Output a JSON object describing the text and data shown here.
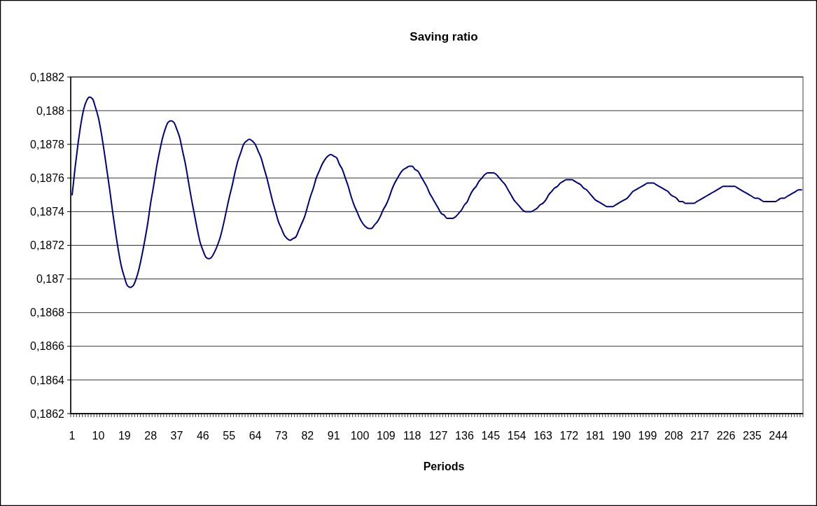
{
  "chart_data": {
    "type": "line",
    "title": "Saving ratio",
    "xlabel": "Periods",
    "categories": [
      "1",
      null,
      null,
      null,
      null,
      null,
      null,
      null,
      null,
      "10",
      null,
      null,
      null,
      null,
      null,
      null,
      null,
      null,
      "19",
      null,
      null,
      null,
      null,
      null,
      null,
      null,
      null,
      "28",
      null,
      null,
      null,
      null,
      null,
      null,
      null,
      null,
      "37",
      null,
      null,
      null,
      null,
      null,
      null,
      null,
      null,
      "46",
      null,
      null,
      null,
      null,
      null,
      null,
      null,
      null,
      "55",
      null,
      null,
      null,
      null,
      null,
      null,
      null,
      null,
      "64",
      null,
      null,
      null,
      null,
      null,
      null,
      null,
      null,
      "73",
      null,
      null,
      null,
      null,
      null,
      null,
      null,
      null,
      "82",
      null,
      null,
      null,
      null,
      null,
      null,
      null,
      null,
      "91",
      null,
      null,
      null,
      null,
      null,
      null,
      null,
      null,
      "100",
      null,
      null,
      null,
      null,
      null,
      null,
      null,
      null,
      "109",
      null,
      null,
      null,
      null,
      null,
      null,
      null,
      null,
      "118",
      null,
      null,
      null,
      null,
      null,
      null,
      null,
      null,
      "127",
      null,
      null,
      null,
      null,
      null,
      null,
      null,
      null,
      "136",
      null,
      null,
      null,
      null,
      null,
      null,
      null,
      null,
      "145",
      null,
      null,
      null,
      null,
      null,
      null,
      null,
      null,
      "154",
      null,
      null,
      null,
      null,
      null,
      null,
      null,
      null,
      "163",
      null,
      null,
      null,
      null,
      null,
      null,
      null,
      null,
      "172",
      null,
      null,
      null,
      null,
      null,
      null,
      null,
      null,
      "181",
      null,
      null,
      null,
      null,
      null,
      null,
      null,
      null,
      "190",
      null,
      null,
      null,
      null,
      null,
      null,
      null,
      null,
      "199",
      null,
      null,
      null,
      null,
      null,
      null,
      null,
      null,
      "208",
      null,
      null,
      null,
      null,
      null,
      null,
      null,
      null,
      "217",
      null,
      null,
      null,
      null,
      null,
      null,
      null,
      null,
      "226",
      null,
      null,
      null,
      null,
      null,
      null,
      null,
      null,
      "235",
      null,
      null,
      null,
      null,
      null,
      null,
      null,
      null,
      "244",
      null,
      null,
      null,
      null,
      null,
      null,
      null,
      null
    ],
    "series": [
      {
        "color": "#000080",
        "values": [
          0.1875,
          0.18766,
          0.1878,
          0.18792,
          0.18801,
          0.18806,
          0.18808,
          0.18807,
          0.18802,
          0.18796,
          0.18787,
          0.18776,
          0.18764,
          0.18752,
          0.18739,
          0.18727,
          0.18716,
          0.18707,
          0.18701,
          0.18696,
          0.18695,
          0.18696,
          0.187,
          0.18706,
          0.18714,
          0.18723,
          0.18733,
          0.18745,
          0.18755,
          0.18766,
          0.18775,
          0.18783,
          0.18789,
          0.18793,
          0.18794,
          0.18793,
          0.18789,
          0.18784,
          0.18776,
          0.18768,
          0.18758,
          0.18748,
          0.18739,
          0.1873,
          0.18722,
          0.18717,
          0.18713,
          0.18712,
          0.18713,
          0.18716,
          0.1872,
          0.18725,
          0.18732,
          0.1874,
          0.18748,
          0.18755,
          0.18763,
          0.1877,
          0.18775,
          0.1878,
          0.18782,
          0.18783,
          0.18782,
          0.1878,
          0.18776,
          0.18772,
          0.18766,
          0.1876,
          0.18753,
          0.18746,
          0.1874,
          0.18734,
          0.1873,
          0.18726,
          0.18724,
          0.18723,
          0.18724,
          0.18725,
          0.18729,
          0.18733,
          0.18737,
          0.18743,
          0.18749,
          0.18754,
          0.1876,
          0.18764,
          0.18768,
          0.18771,
          0.18773,
          0.18774,
          0.18773,
          0.18772,
          0.18768,
          0.18765,
          0.1876,
          0.18755,
          0.18749,
          0.18744,
          0.1874,
          0.18736,
          0.18733,
          0.18731,
          0.1873,
          0.1873,
          0.18732,
          0.18734,
          0.18737,
          0.18741,
          0.18744,
          0.18748,
          0.18753,
          0.18757,
          0.1876,
          0.18763,
          0.18765,
          0.18766,
          0.18767,
          0.18767,
          0.18765,
          0.18764,
          0.18761,
          0.18758,
          0.18755,
          0.18751,
          0.18748,
          0.18745,
          0.18742,
          0.18739,
          0.18738,
          0.18736,
          0.18736,
          0.18736,
          0.18737,
          0.18739,
          0.18741,
          0.18744,
          0.18746,
          0.1875,
          0.18753,
          0.18755,
          0.18758,
          0.1876,
          0.18762,
          0.18763,
          0.18763,
          0.18763,
          0.18762,
          0.1876,
          0.18758,
          0.18756,
          0.18753,
          0.1875,
          0.18747,
          0.18745,
          0.18743,
          0.18741,
          0.1874,
          0.1874,
          0.1874,
          0.18741,
          0.18742,
          0.18744,
          0.18745,
          0.18747,
          0.1875,
          0.18752,
          0.18754,
          0.18755,
          0.18757,
          0.18758,
          0.18759,
          0.18759,
          0.18759,
          0.18758,
          0.18757,
          0.18756,
          0.18754,
          0.18753,
          0.18751,
          0.18749,
          0.18747,
          0.18746,
          0.18745,
          0.18744,
          0.18743,
          0.18743,
          0.18743,
          0.18744,
          0.18745,
          0.18746,
          0.18747,
          0.18748,
          0.1875,
          0.18752,
          0.18753,
          0.18754,
          0.18755,
          0.18756,
          0.18757,
          0.18757,
          0.18757,
          0.18756,
          0.18755,
          0.18754,
          0.18753,
          0.18752,
          0.1875,
          0.18749,
          0.18748,
          0.18746,
          0.18746,
          0.18745,
          0.18745,
          0.18745,
          0.18745,
          0.18746,
          0.18747,
          0.18748,
          0.18749,
          0.1875,
          0.18751,
          0.18752,
          0.18753,
          0.18754,
          0.18755,
          0.18755,
          0.18755,
          0.18755,
          0.18755,
          0.18754,
          0.18753,
          0.18752,
          0.18751,
          0.1875,
          0.18749,
          0.18748,
          0.18748,
          0.18747,
          0.18746,
          0.18746,
          0.18746,
          0.18746,
          0.18746,
          0.18747,
          0.18748,
          0.18748,
          0.18749,
          0.1875,
          0.18751,
          0.18752,
          0.18753,
          0.18753
        ]
      }
    ],
    "ylim": [
      0.1862,
      0.1882
    ],
    "yticks": [
      {
        "value": 0.1862,
        "label": "0,1862"
      },
      {
        "value": 0.1864,
        "label": "0,1864"
      },
      {
        "value": 0.1866,
        "label": "0,1866"
      },
      {
        "value": 0.1868,
        "label": "0,1868"
      },
      {
        "value": 0.187,
        "label": "0,187"
      },
      {
        "value": 0.1872,
        "label": "0,1872"
      },
      {
        "value": 0.1874,
        "label": "0,1874"
      },
      {
        "value": 0.1876,
        "label": "0,1876"
      },
      {
        "value": 0.1878,
        "label": "0,1878"
      },
      {
        "value": 0.188,
        "label": "0,188"
      },
      {
        "value": 0.1882,
        "label": "0,1882"
      }
    ],
    "grid": "y",
    "marker": "none",
    "line_style": "solid"
  }
}
